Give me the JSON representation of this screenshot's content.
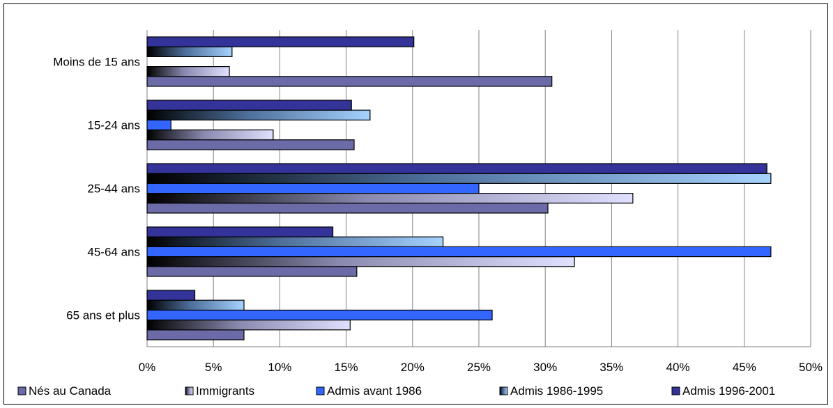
{
  "chart_data": {
    "type": "bar",
    "orientation": "horizontal",
    "categories": [
      "65 ans et plus",
      "45-64 ans",
      "25-44 ans",
      "15-24 ans",
      "Moins de 15 ans"
    ],
    "series": [
      {
        "name": "Nés au Canada",
        "values": [
          7.3,
          15.8,
          30.2,
          15.6,
          30.5
        ],
        "color": "#6b6ba8"
      },
      {
        "name": "Immigrants",
        "values": [
          15.3,
          32.2,
          36.6,
          9.5,
          6.2
        ],
        "color": "#d8d8f8"
      },
      {
        "name": "Admis avant 1986",
        "values": [
          26.0,
          47.0,
          25.0,
          1.8,
          0
        ],
        "color": "#3366ff"
      },
      {
        "name": "Admis 1986-1995",
        "values": [
          7.3,
          22.3,
          47.0,
          16.8,
          6.4
        ],
        "color": "#99ccff"
      },
      {
        "name": "Admis 1996-2001",
        "values": [
          3.6,
          14.0,
          46.7,
          15.4,
          20.1
        ],
        "color": "#333399"
      }
    ],
    "xlim": [
      0,
      50
    ],
    "xticks": [
      "0%",
      "5%",
      "10%",
      "15%",
      "20%",
      "25%",
      "30%",
      "35%",
      "40%",
      "45%",
      "50%"
    ],
    "grid": true,
    "legend_position": "bottom",
    "title": "",
    "xlabel": "",
    "ylabel": ""
  }
}
